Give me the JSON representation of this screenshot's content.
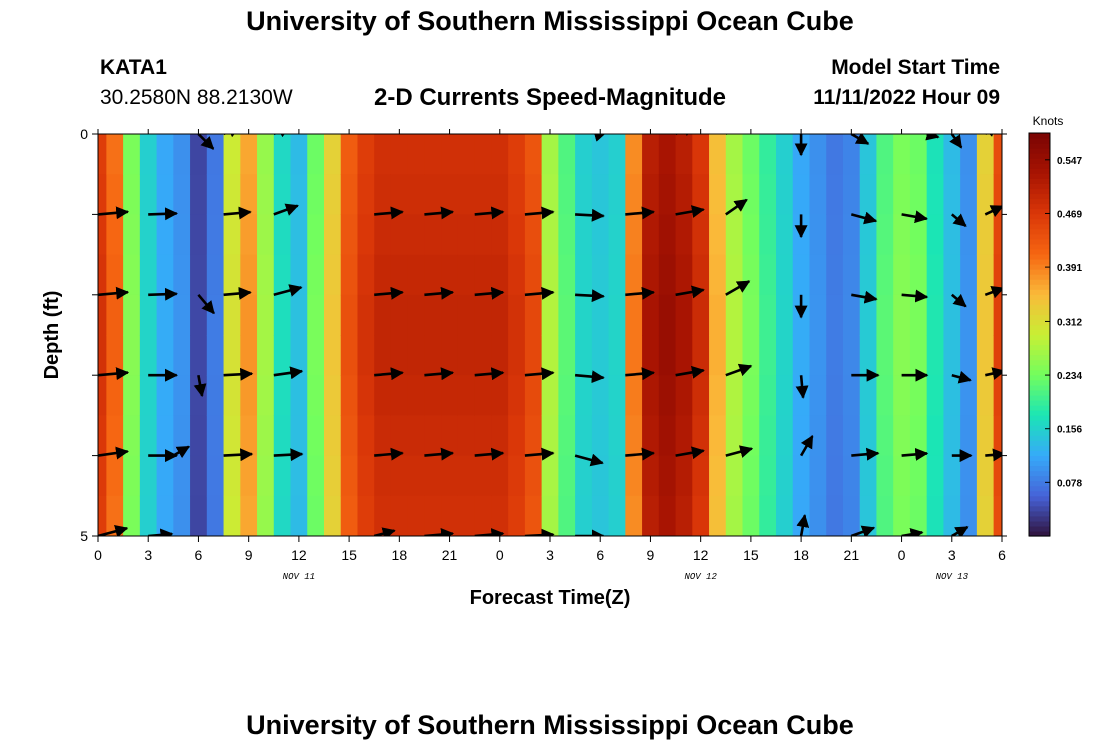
{
  "page": {
    "title_top": "University of Southern Mississippi Ocean Cube",
    "title_bottom": "University of Southern Mississippi Ocean Cube",
    "station_id": "KATA1",
    "station_coords": "30.2580N  88.2130W",
    "plot_title": "2-D Currents Speed-Magnitude",
    "model_start_label": "Model Start Time",
    "model_start_value": "11/11/2022 Hour 09"
  },
  "chart_data": {
    "type": "heatmap",
    "title": "2-D Currents Speed-Magnitude",
    "xlabel": "Forecast Time(Z)",
    "ylabel": "Depth (ft)",
    "x_range_hours": [
      0,
      54
    ],
    "y_range_ft": [
      0,
      5
    ],
    "x_tick_labels": [
      "0",
      "3",
      "6",
      "9",
      "12",
      "15",
      "18",
      "21",
      "0",
      "3",
      "6",
      "9",
      "12",
      "15",
      "18",
      "21",
      "0",
      "3",
      "6"
    ],
    "y_tick_labels": [
      "0",
      "5"
    ],
    "date_labels": [
      {
        "text": "NOV 11",
        "hour": 12
      },
      {
        "text": "NOV 12",
        "hour": 36
      },
      {
        "text": "NOV 13",
        "hour": 51
      }
    ],
    "colorbar": {
      "label": "Knots",
      "range": [
        0.0,
        0.586
      ],
      "ticks": [
        "0.547",
        "0.469",
        "0.391",
        "0.312",
        "0.234",
        "0.156",
        "0.078"
      ],
      "tick_values": [
        0.547,
        0.469,
        0.391,
        0.312,
        0.234,
        0.156,
        0.078
      ]
    },
    "speed_by_hour_knots": [
      0.48,
      0.42,
      0.25,
      0.16,
      0.12,
      0.1,
      0.04,
      0.08,
      0.31,
      0.38,
      0.27,
      0.17,
      0.14,
      0.24,
      0.34,
      0.44,
      0.48,
      0.5,
      0.5,
      0.5,
      0.5,
      0.5,
      0.5,
      0.5,
      0.5,
      0.48,
      0.45,
      0.28,
      0.22,
      0.16,
      0.15,
      0.16,
      0.4,
      0.53,
      0.55,
      0.53,
      0.49,
      0.36,
      0.28,
      0.24,
      0.2,
      0.16,
      0.12,
      0.1,
      0.08,
      0.09,
      0.15,
      0.22,
      0.25,
      0.24,
      0.18,
      0.14,
      0.1,
      0.34,
      0.46
    ],
    "vectors": [
      {
        "hour": 0,
        "depth": 1,
        "dir": 5,
        "len": 1.0
      },
      {
        "hour": 0,
        "depth": 2,
        "dir": 5,
        "len": 1.0
      },
      {
        "hour": 0,
        "depth": 3,
        "dir": 5,
        "len": 1.0
      },
      {
        "hour": 0,
        "depth": 4,
        "dir": 8,
        "len": 1.0
      },
      {
        "hour": 0,
        "depth": 5,
        "dir": 15,
        "len": 1.0
      },
      {
        "hour": 3,
        "depth": 1,
        "dir": 2,
        "len": 0.95
      },
      {
        "hour": 3,
        "depth": 2,
        "dir": 2,
        "len": 0.95
      },
      {
        "hour": 3,
        "depth": 3,
        "dir": 0,
        "len": 0.95
      },
      {
        "hour": 3,
        "depth": 4,
        "dir": 0,
        "len": 0.95
      },
      {
        "hour": 3,
        "depth": 5,
        "dir": 5,
        "len": 0.8
      },
      {
        "hour": 4.5,
        "depth": 4,
        "dir": 30,
        "len": 0.6
      },
      {
        "hour": 6,
        "depth": 0,
        "dir": -45,
        "len": 0.7
      },
      {
        "hour": 6,
        "depth": 2,
        "dir": -50,
        "len": 0.8
      },
      {
        "hour": 6,
        "depth": 3,
        "dir": -80,
        "len": 0.7
      },
      {
        "hour": 7.5,
        "depth": 0,
        "dir": 25,
        "len": 0.6
      },
      {
        "hour": 7.5,
        "depth": 1,
        "dir": 5,
        "len": 0.9
      },
      {
        "hour": 7.5,
        "depth": 2,
        "dir": 5,
        "len": 0.9
      },
      {
        "hour": 7.5,
        "depth": 3,
        "dir": 3,
        "len": 0.95
      },
      {
        "hour": 7.5,
        "depth": 4,
        "dir": 3,
        "len": 0.95
      },
      {
        "hour": 10.5,
        "depth": 0,
        "dir": 25,
        "len": 0.6
      },
      {
        "hour": 10.5,
        "depth": 1,
        "dir": 20,
        "len": 0.85
      },
      {
        "hour": 10.5,
        "depth": 2,
        "dir": 15,
        "len": 0.95
      },
      {
        "hour": 10.5,
        "depth": 3,
        "dir": 8,
        "len": 0.95
      },
      {
        "hour": 10.5,
        "depth": 4,
        "dir": 3,
        "len": 0.95
      },
      {
        "hour": 16.5,
        "depth": 1,
        "dir": 5,
        "len": 0.95
      },
      {
        "hour": 16.5,
        "depth": 2,
        "dir": 5,
        "len": 0.95
      },
      {
        "hour": 16.5,
        "depth": 3,
        "dir": 5,
        "len": 0.95
      },
      {
        "hour": 16.5,
        "depth": 4,
        "dir": 5,
        "len": 0.95
      },
      {
        "hour": 16.5,
        "depth": 5,
        "dir": 15,
        "len": 0.7
      },
      {
        "hour": 19.5,
        "depth": 1,
        "dir": 5,
        "len": 0.95
      },
      {
        "hour": 19.5,
        "depth": 2,
        "dir": 5,
        "len": 0.95
      },
      {
        "hour": 19.5,
        "depth": 3,
        "dir": 5,
        "len": 0.95
      },
      {
        "hour": 19.5,
        "depth": 4,
        "dir": 5,
        "len": 0.95
      },
      {
        "hour": 19.5,
        "depth": 5,
        "dir": 5,
        "len": 0.95
      },
      {
        "hour": 22.5,
        "depth": 1,
        "dir": 5,
        "len": 0.95
      },
      {
        "hour": 22.5,
        "depth": 2,
        "dir": 5,
        "len": 0.95
      },
      {
        "hour": 22.5,
        "depth": 3,
        "dir": 5,
        "len": 0.95
      },
      {
        "hour": 22.5,
        "depth": 4,
        "dir": 5,
        "len": 0.95
      },
      {
        "hour": 22.5,
        "depth": 5,
        "dir": 5,
        "len": 0.95
      },
      {
        "hour": 25.5,
        "depth": 1,
        "dir": 5,
        "len": 0.95
      },
      {
        "hour": 25.5,
        "depth": 2,
        "dir": 5,
        "len": 0.95
      },
      {
        "hour": 25.5,
        "depth": 3,
        "dir": 5,
        "len": 0.95
      },
      {
        "hour": 25.5,
        "depth": 4,
        "dir": 5,
        "len": 0.95
      },
      {
        "hour": 25.5,
        "depth": 5,
        "dir": 3,
        "len": 0.95
      },
      {
        "hour": 28.5,
        "depth": 1,
        "dir": -3,
        "len": 0.95
      },
      {
        "hour": 28.5,
        "depth": 2,
        "dir": -3,
        "len": 0.95
      },
      {
        "hour": 28.5,
        "depth": 3,
        "dir": -5,
        "len": 0.95
      },
      {
        "hour": 28.5,
        "depth": 4,
        "dir": -15,
        "len": 0.95
      },
      {
        "hour": 28.5,
        "depth": 5,
        "dir": 0,
        "len": 0.95
      },
      {
        "hour": 30,
        "depth": 0,
        "dir": 15,
        "len": 0.2
      },
      {
        "hour": 31.5,
        "depth": 1,
        "dir": 5,
        "len": 0.95
      },
      {
        "hour": 31.5,
        "depth": 2,
        "dir": 5,
        "len": 0.95
      },
      {
        "hour": 31.5,
        "depth": 3,
        "dir": 5,
        "len": 0.95
      },
      {
        "hour": 31.5,
        "depth": 4,
        "dir": 5,
        "len": 0.95
      },
      {
        "hour": 34.5,
        "depth": 0,
        "dir": 25,
        "len": 0.7
      },
      {
        "hour": 34.5,
        "depth": 1,
        "dir": 10,
        "len": 0.95
      },
      {
        "hour": 34.5,
        "depth": 2,
        "dir": 10,
        "len": 0.95
      },
      {
        "hour": 34.5,
        "depth": 3,
        "dir": 10,
        "len": 0.95
      },
      {
        "hour": 34.5,
        "depth": 4,
        "dir": 10,
        "len": 0.95
      },
      {
        "hour": 37.5,
        "depth": 0,
        "dir": 40,
        "len": 0.7
      },
      {
        "hour": 37.5,
        "depth": 1,
        "dir": 35,
        "len": 0.85
      },
      {
        "hour": 37.5,
        "depth": 2,
        "dir": 30,
        "len": 0.9
      },
      {
        "hour": 37.5,
        "depth": 3,
        "dir": 20,
        "len": 0.9
      },
      {
        "hour": 37.5,
        "depth": 4,
        "dir": 15,
        "len": 0.9
      },
      {
        "hour": 42,
        "depth": 0,
        "dir": -90,
        "len": 0.7
      },
      {
        "hour": 42,
        "depth": 1,
        "dir": -90,
        "len": 0.75
      },
      {
        "hour": 42,
        "depth": 2,
        "dir": -90,
        "len": 0.75
      },
      {
        "hour": 42,
        "depth": 3,
        "dir": -85,
        "len": 0.75
      },
      {
        "hour": 42,
        "depth": 4,
        "dir": 60,
        "len": 0.75
      },
      {
        "hour": 42,
        "depth": 5,
        "dir": 80,
        "len": 0.7
      },
      {
        "hour": 45,
        "depth": 0,
        "dir": -30,
        "len": 0.65
      },
      {
        "hour": 45,
        "depth": 1,
        "dir": -15,
        "len": 0.85
      },
      {
        "hour": 45,
        "depth": 2,
        "dir": -10,
        "len": 0.85
      },
      {
        "hour": 45,
        "depth": 3,
        "dir": 0,
        "len": 0.9
      },
      {
        "hour": 45,
        "depth": 4,
        "dir": 5,
        "len": 0.9
      },
      {
        "hour": 45,
        "depth": 5,
        "dir": 20,
        "len": 0.8
      },
      {
        "hour": 48,
        "depth": 1,
        "dir": -10,
        "len": 0.85
      },
      {
        "hour": 48,
        "depth": 2,
        "dir": -5,
        "len": 0.85
      },
      {
        "hour": 48,
        "depth": 3,
        "dir": 0,
        "len": 0.85
      },
      {
        "hour": 48,
        "depth": 4,
        "dir": 5,
        "len": 0.85
      },
      {
        "hour": 48,
        "depth": 5,
        "dir": 10,
        "len": 0.7
      },
      {
        "hour": 49.5,
        "depth": 0,
        "dir": -15,
        "len": 0.4
      },
      {
        "hour": 51,
        "depth": 0,
        "dir": -55,
        "len": 0.55
      },
      {
        "hour": 51,
        "depth": 1,
        "dir": -40,
        "len": 0.6
      },
      {
        "hour": 51,
        "depth": 2,
        "dir": -40,
        "len": 0.6
      },
      {
        "hour": 51,
        "depth": 3,
        "dir": -15,
        "len": 0.65
      },
      {
        "hour": 51,
        "depth": 4,
        "dir": 0,
        "len": 0.65
      },
      {
        "hour": 51,
        "depth": 5,
        "dir": 30,
        "len": 0.6
      },
      {
        "hour": 53,
        "depth": 0,
        "dir": 40,
        "len": 0.5
      },
      {
        "hour": 53,
        "depth": 1,
        "dir": 25,
        "len": 0.65
      },
      {
        "hour": 53,
        "depth": 2,
        "dir": 20,
        "len": 0.65
      },
      {
        "hour": 53,
        "depth": 3,
        "dir": 12,
        "len": 0.65
      },
      {
        "hour": 53,
        "depth": 4,
        "dir": 5,
        "len": 0.65
      }
    ]
  }
}
